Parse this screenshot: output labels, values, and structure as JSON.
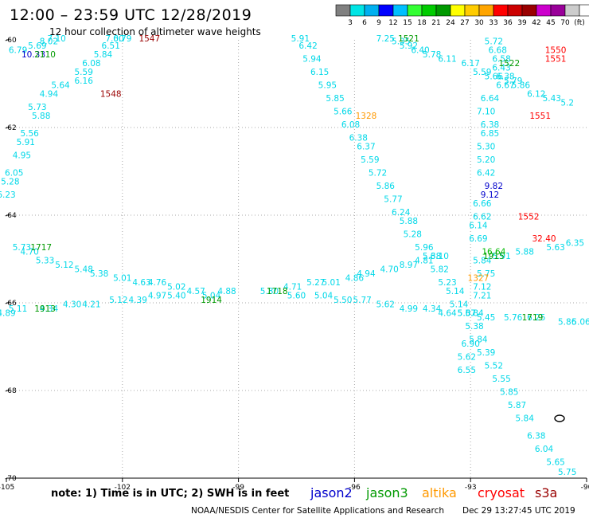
{
  "header": {
    "title": "12:00 – 23:59 UTC 12/28/2019",
    "subtitle": "12 hour collection of altimeter wave heights"
  },
  "colorbar": {
    "colors": [
      "#808080",
      "#00e5e5",
      "#00b0f0",
      "#0000ff",
      "#00bfff",
      "#33ff33",
      "#00cc00",
      "#009900",
      "#ffff00",
      "#ffcc00",
      "#ffa500",
      "#ff0000",
      "#cc0000",
      "#990000",
      "#cc00cc",
      "#990099",
      "#cccccc",
      "#ffffff"
    ],
    "ticks": [
      "3",
      "6",
      "9",
      "12",
      "15",
      "18",
      "21",
      "24",
      "27",
      "30",
      "33",
      "36",
      "39",
      "42",
      "45",
      "70",
      "(ft)"
    ]
  },
  "footer": {
    "note": "note: 1) Time is in UTC; 2) SWH is in feet",
    "satellites": [
      {
        "name": "jason2",
        "color": "#0000cc"
      },
      {
        "name": "jason3",
        "color": "#009900"
      },
      {
        "name": "altika",
        "color": "#ff9900"
      },
      {
        "name": "cryosat",
        "color": "#ff0000"
      },
      {
        "name": "s3a",
        "color": "#990000"
      }
    ],
    "credit": "NOAA/NESDIS Center for Satellite Applications and Research",
    "timestamp": "Dec 29 13:27:45 UTC 2019"
  },
  "chart_data": {
    "type": "scatter",
    "title": "12:00 – 23:59 UTC 12/28/2019",
    "subtitle": "12 hour collection of altimeter wave heights",
    "xlim": [
      -105,
      -90
    ],
    "ylim": [
      -70,
      -60
    ],
    "x_ticks": [
      "-105",
      "-102",
      "-99",
      "-96",
      "-93",
      "-90"
    ],
    "y_ticks": [
      "-60",
      "-62",
      "-64",
      "-66",
      "-68",
      "-70"
    ],
    "grid": "dotted",
    "series": [
      {
        "name": "cyan swh",
        "color": "#00d8e8",
        "points": [
          {
            "x": -104.7,
            "y": -60.3,
            "v": "6.79"
          },
          {
            "x": -104.2,
            "y": -60.2,
            "v": "5.69"
          },
          {
            "x": -103.9,
            "y": -60.1,
            "v": "8.02"
          },
          {
            "x": -103.7,
            "y": -60.0,
            "v": "7.10"
          },
          {
            "x": -103.6,
            "y": -61.1,
            "v": "5.64"
          },
          {
            "x": -103.0,
            "y": -61.0,
            "v": "6.16"
          },
          {
            "x": -103.0,
            "y": -60.8,
            "v": "5.59"
          },
          {
            "x": -102.8,
            "y": -60.6,
            "v": "6.08"
          },
          {
            "x": -103.9,
            "y": -61.3,
            "v": "4.94"
          },
          {
            "x": -104.2,
            "y": -61.6,
            "v": "5.73"
          },
          {
            "x": -104.1,
            "y": -61.8,
            "v": "5.88"
          },
          {
            "x": -104.4,
            "y": -62.2,
            "v": "5.56"
          },
          {
            "x": -104.5,
            "y": -62.4,
            "v": "5.91"
          },
          {
            "x": -104.6,
            "y": -62.7,
            "v": "4.95"
          },
          {
            "x": -104.8,
            "y": -63.1,
            "v": "6.05"
          },
          {
            "x": -104.9,
            "y": -63.3,
            "v": "5.28"
          },
          {
            "x": -105.0,
            "y": -63.6,
            "v": "6.23"
          },
          {
            "x": -102.5,
            "y": -60.4,
            "v": "5.84"
          },
          {
            "x": -102.3,
            "y": -60.2,
            "v": "6.51"
          },
          {
            "x": -102.2,
            "y": -60.0,
            "v": "7.00"
          },
          {
            "x": -102.0,
            "y": -59.9,
            "v": "6.79"
          },
          {
            "x": -97.4,
            "y": -60.0,
            "v": "5.91"
          },
          {
            "x": -97.2,
            "y": -60.2,
            "v": "6.42"
          },
          {
            "x": -97.1,
            "y": -60.5,
            "v": "5.94"
          },
          {
            "x": -96.9,
            "y": -60.8,
            "v": "6.15"
          },
          {
            "x": -96.7,
            "y": -61.1,
            "v": "5.95"
          },
          {
            "x": -96.5,
            "y": -61.4,
            "v": "5.85"
          },
          {
            "x": -96.3,
            "y": -61.7,
            "v": "5.66"
          },
          {
            "x": -96.1,
            "y": -62.0,
            "v": "6.08"
          },
          {
            "x": -95.9,
            "y": -62.3,
            "v": "6.38"
          },
          {
            "x": -95.7,
            "y": -62.5,
            "v": "6.37"
          },
          {
            "x": -95.6,
            "y": -62.8,
            "v": "5.59"
          },
          {
            "x": -95.4,
            "y": -63.1,
            "v": "5.72"
          },
          {
            "x": -95.2,
            "y": -63.4,
            "v": "5.86"
          },
          {
            "x": -95.0,
            "y": -63.7,
            "v": "5.77"
          },
          {
            "x": -94.8,
            "y": -64.0,
            "v": "6.24"
          },
          {
            "x": -94.6,
            "y": -64.2,
            "v": "5.88"
          },
          {
            "x": -94.5,
            "y": -64.5,
            "v": "5.28"
          },
          {
            "x": -94.2,
            "y": -64.8,
            "v": "5.96"
          },
          {
            "x": -94.0,
            "y": -65.0,
            "v": "5.38"
          },
          {
            "x": -93.8,
            "y": -65.3,
            "v": "5.82"
          },
          {
            "x": -93.6,
            "y": -65.6,
            "v": "5.23"
          },
          {
            "x": -93.4,
            "y": -65.8,
            "v": "5.14"
          },
          {
            "x": -93.3,
            "y": -66.1,
            "v": "5.14"
          },
          {
            "x": -93.1,
            "y": -66.3,
            "v": "5.67"
          },
          {
            "x": -92.9,
            "y": -66.6,
            "v": "5.38"
          },
          {
            "x": -92.8,
            "y": -66.9,
            "v": "5.84"
          },
          {
            "x": -92.6,
            "y": -67.2,
            "v": "5.39"
          },
          {
            "x": -92.4,
            "y": -67.5,
            "v": "5.52"
          },
          {
            "x": -92.2,
            "y": -67.8,
            "v": "5.55"
          },
          {
            "x": -92.0,
            "y": -68.1,
            "v": "5.85"
          },
          {
            "x": -91.8,
            "y": -68.4,
            "v": "5.87"
          },
          {
            "x": -91.6,
            "y": -68.7,
            "v": "5.84"
          },
          {
            "x": -91.3,
            "y": -69.1,
            "v": "6.38"
          },
          {
            "x": -91.1,
            "y": -69.4,
            "v": "6.04"
          },
          {
            "x": -90.8,
            "y": -69.7,
            "v": "5.65"
          },
          {
            "x": -90.5,
            "y": -70.0,
            "v": "5.75"
          },
          {
            "x": -95.2,
            "y": -59.9,
            "v": "7.25"
          },
          {
            "x": -94.8,
            "y": -60.1,
            "v": "5.35"
          },
          {
            "x": -94.6,
            "y": -60.2,
            "v": "5.92"
          },
          {
            "x": -94.3,
            "y": -60.3,
            "v": "6.40"
          },
          {
            "x": -94.0,
            "y": -60.4,
            "v": "5.78"
          },
          {
            "x": -93.6,
            "y": -60.5,
            "v": "6.11"
          },
          {
            "x": -93.0,
            "y": -60.6,
            "v": "6.17"
          },
          {
            "x": -92.7,
            "y": -60.8,
            "v": "5.59"
          },
          {
            "x": -92.4,
            "y": -60.9,
            "v": "5.66"
          },
          {
            "x": -92.4,
            "y": -60.1,
            "v": "5.72"
          },
          {
            "x": -92.3,
            "y": -60.3,
            "v": "6.68"
          },
          {
            "x": -92.2,
            "y": -60.5,
            "v": "6.58"
          },
          {
            "x": -92.2,
            "y": -60.7,
            "v": "6.43"
          },
          {
            "x": -92.1,
            "y": -60.9,
            "v": "6.38"
          },
          {
            "x": -92.1,
            "y": -61.1,
            "v": "6.67"
          },
          {
            "x": -91.9,
            "y": -61.0,
            "v": "5.79"
          },
          {
            "x": -91.7,
            "y": -61.1,
            "v": "5.86"
          },
          {
            "x": -91.3,
            "y": -61.3,
            "v": "6.12"
          },
          {
            "x": -90.9,
            "y": -61.4,
            "v": "5.43"
          },
          {
            "x": -90.5,
            "y": -61.5,
            "v": "5.2"
          },
          {
            "x": -92.5,
            "y": -61.4,
            "v": "6.64"
          },
          {
            "x": -92.6,
            "y": -61.7,
            "v": "7.10"
          },
          {
            "x": -92.5,
            "y": -62.0,
            "v": "6.38"
          },
          {
            "x": -92.5,
            "y": -62.2,
            "v": "6.85"
          },
          {
            "x": -92.6,
            "y": -62.5,
            "v": "5.30"
          },
          {
            "x": -92.6,
            "y": -62.8,
            "v": "5.20"
          },
          {
            "x": -92.6,
            "y": -63.1,
            "v": "6.42"
          },
          {
            "x": -92.7,
            "y": -63.8,
            "v": "6.66"
          },
          {
            "x": -92.7,
            "y": -64.1,
            "v": "6.62"
          },
          {
            "x": -92.8,
            "y": -64.3,
            "v": "6.14"
          },
          {
            "x": -92.8,
            "y": -64.6,
            "v": "6.69"
          },
          {
            "x": -92.7,
            "y": -65.1,
            "v": "5.84"
          },
          {
            "x": -92.6,
            "y": -65.4,
            "v": "5.75"
          },
          {
            "x": -92.7,
            "y": -65.7,
            "v": "7.12"
          },
          {
            "x": -92.7,
            "y": -65.9,
            "v": "7.21"
          },
          {
            "x": -92.9,
            "y": -66.3,
            "v": "5.84"
          },
          {
            "x": -92.2,
            "y": -65.0,
            "v": "5.91"
          },
          {
            "x": -91.6,
            "y": -64.9,
            "v": "5.88"
          },
          {
            "x": -90.8,
            "y": -64.8,
            "v": "5.63"
          },
          {
            "x": -90.3,
            "y": -64.7,
            "v": "6.35"
          },
          {
            "x": -93.0,
            "y": -67.0,
            "v": "6.90"
          },
          {
            "x": -93.1,
            "y": -67.3,
            "v": "5.62"
          },
          {
            "x": -93.1,
            "y": -67.6,
            "v": "6.55"
          },
          {
            "x": -104.6,
            "y": -64.8,
            "v": "5.73"
          },
          {
            "x": -104.4,
            "y": -64.9,
            "v": "4.70"
          },
          {
            "x": -104.0,
            "y": -65.1,
            "v": "5.33"
          },
          {
            "x": -103.5,
            "y": -65.2,
            "v": "5.12"
          },
          {
            "x": -103.0,
            "y": -65.3,
            "v": "5.48"
          },
          {
            "x": -102.6,
            "y": -65.4,
            "v": "5.38"
          },
          {
            "x": -102.0,
            "y": -65.5,
            "v": "5.01"
          },
          {
            "x": -101.5,
            "y": -65.6,
            "v": "4.63"
          },
          {
            "x": -101.1,
            "y": -65.6,
            "v": "4.76"
          },
          {
            "x": -100.6,
            "y": -65.7,
            "v": "5.02"
          },
          {
            "x": -100.1,
            "y": -65.8,
            "v": "4.57"
          },
          {
            "x": -99.7,
            "y": -65.9,
            "v": "5.04"
          },
          {
            "x": -97.6,
            "y": -65.7,
            "v": "4.71"
          },
          {
            "x": -97.0,
            "y": -65.6,
            "v": "5.27"
          },
          {
            "x": -96.6,
            "y": -65.6,
            "v": "5.01"
          },
          {
            "x": -96.0,
            "y": -65.5,
            "v": "4.86"
          },
          {
            "x": -95.7,
            "y": -65.4,
            "v": "4.94"
          },
          {
            "x": -95.1,
            "y": -65.3,
            "v": "4.70"
          },
          {
            "x": -94.6,
            "y": -65.2,
            "v": "8.97"
          },
          {
            "x": -94.2,
            "y": -65.1,
            "v": "4.81"
          },
          {
            "x": -93.8,
            "y": -65.0,
            "v": "6.10"
          },
          {
            "x": -105.0,
            "y": -66.3,
            "v": "4.89"
          },
          {
            "x": -104.7,
            "y": -66.2,
            "v": "5.11"
          },
          {
            "x": -103.9,
            "y": -66.2,
            "v": "4.34"
          },
          {
            "x": -103.3,
            "y": -66.1,
            "v": "4.30"
          },
          {
            "x": -102.8,
            "y": -66.1,
            "v": "4.21"
          },
          {
            "x": -102.1,
            "y": -66.0,
            "v": "5.12"
          },
          {
            "x": -101.6,
            "y": -66.0,
            "v": "4.39"
          },
          {
            "x": -101.1,
            "y": -65.9,
            "v": "4.97"
          },
          {
            "x": -100.6,
            "y": -65.9,
            "v": "5.40"
          },
          {
            "x": -99.3,
            "y": -65.8,
            "v": "4.88"
          },
          {
            "x": -98.2,
            "y": -65.8,
            "v": "5.80"
          },
          {
            "x": -97.5,
            "y": -65.9,
            "v": "5.60"
          },
          {
            "x": -96.8,
            "y": -65.9,
            "v": "5.04"
          },
          {
            "x": -96.3,
            "y": -66.0,
            "v": "5.50"
          },
          {
            "x": -95.8,
            "y": -66.0,
            "v": "5.77"
          },
          {
            "x": -95.2,
            "y": -66.1,
            "v": "5.62"
          },
          {
            "x": -94.6,
            "y": -66.2,
            "v": "4.99"
          },
          {
            "x": -94.0,
            "y": -66.2,
            "v": "4.34"
          },
          {
            "x": -93.6,
            "y": -66.3,
            "v": "4.64"
          },
          {
            "x": -93.1,
            "y": -66.3,
            "v": "5.07"
          },
          {
            "x": -92.6,
            "y": -66.4,
            "v": "5.45"
          },
          {
            "x": -91.9,
            "y": -66.4,
            "v": "5.76"
          },
          {
            "x": -91.3,
            "y": -66.4,
            "v": "6.25"
          },
          {
            "x": -90.5,
            "y": -66.5,
            "v": "5.86"
          },
          {
            "x": -90.1,
            "y": -66.5,
            "v": "5.06"
          }
        ]
      },
      {
        "name": "blue swh",
        "color": "#0000cc",
        "points": [
          {
            "x": -104.3,
            "y": -60.4,
            "v": "10.33"
          },
          {
            "x": -92.4,
            "y": -63.4,
            "v": "9.82"
          },
          {
            "x": -92.5,
            "y": -63.6,
            "v": "9.12"
          }
        ]
      },
      {
        "name": "green swh",
        "color": "#00bb00",
        "points": [
          {
            "x": -92.4,
            "y": -64.9,
            "v": "16.64"
          }
        ]
      },
      {
        "name": "red swh",
        "color": "#ff0000",
        "points": [
          {
            "x": -91.1,
            "y": -64.6,
            "v": "32.40"
          }
        ]
      },
      {
        "name": "times",
        "points": [
          {
            "x": -104.0,
            "y": -60.4,
            "v": "2110",
            "color": "#009900"
          },
          {
            "x": -101.3,
            "y": -59.9,
            "v": "1547",
            "color": "#990000"
          },
          {
            "x": -102.3,
            "y": -61.3,
            "v": "1548",
            "color": "#990000"
          },
          {
            "x": -94.6,
            "y": -59.9,
            "v": "1521",
            "color": "#009900"
          },
          {
            "x": -92.0,
            "y": -60.6,
            "v": "1522",
            "color": "#009900"
          },
          {
            "x": -90.8,
            "y": -60.3,
            "v": "1550",
            "color": "#ff0000"
          },
          {
            "x": -90.8,
            "y": -60.5,
            "v": "1551",
            "color": "#ff0000"
          },
          {
            "x": -91.2,
            "y": -61.8,
            "v": "1551",
            "color": "#ff0000"
          },
          {
            "x": -95.7,
            "y": -61.8,
            "v": "1328",
            "color": "#ff9900"
          },
          {
            "x": -91.5,
            "y": -64.1,
            "v": "1552",
            "color": "#ff0000"
          },
          {
            "x": -104.1,
            "y": -64.8,
            "v": "1717",
            "color": "#009900"
          },
          {
            "x": -92.4,
            "y": -65.0,
            "v": "1915",
            "color": "#009900"
          },
          {
            "x": -92.8,
            "y": -65.5,
            "v": "1327",
            "color": "#ff9900"
          },
          {
            "x": -98.0,
            "y": -65.8,
            "v": "1718",
            "color": "#009900"
          },
          {
            "x": -99.7,
            "y": -66.0,
            "v": "1914",
            "color": "#009900"
          },
          {
            "x": -104.0,
            "y": -66.2,
            "v": "1913",
            "color": "#009900"
          },
          {
            "x": -91.4,
            "y": -66.4,
            "v": "1719",
            "color": "#009900"
          }
        ]
      }
    ]
  }
}
